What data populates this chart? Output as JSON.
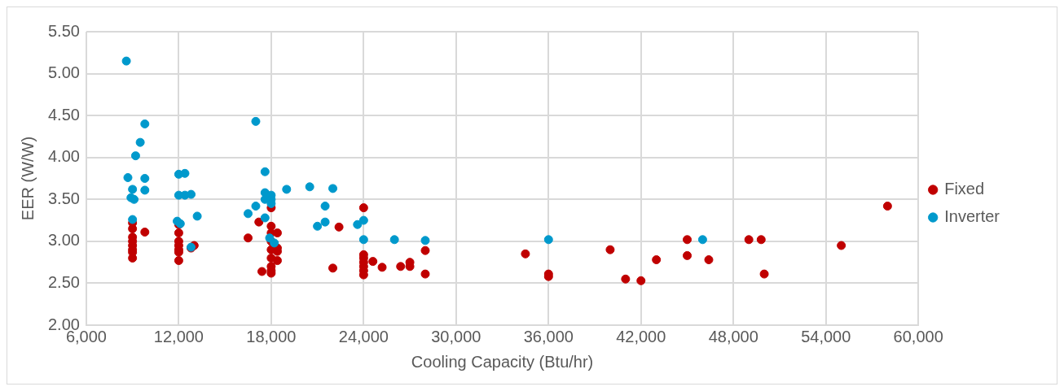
{
  "chart_data": {
    "type": "scatter",
    "xlabel": "Cooling Capacity (Btu/hr)",
    "ylabel": "EER (W/W)",
    "xlim": [
      6000,
      60000
    ],
    "xticks": [
      {
        "value": 6000,
        "label": "6,000"
      },
      {
        "value": 12000,
        "label": "12,000"
      },
      {
        "value": 18000,
        "label": "18,000"
      },
      {
        "value": 24000,
        "label": "24,000"
      },
      {
        "value": 30000,
        "label": "30,000"
      },
      {
        "value": 36000,
        "label": "36,000"
      },
      {
        "value": 42000,
        "label": "42,000"
      },
      {
        "value": 48000,
        "label": "48,000"
      },
      {
        "value": 54000,
        "label": "54,000"
      },
      {
        "value": 60000,
        "label": "60,000"
      }
    ],
    "ylim": [
      2,
      5.5
    ],
    "yticks": [
      {
        "value": 2,
        "label": "2.00"
      },
      {
        "value": 2.5,
        "label": "2.50"
      },
      {
        "value": 3,
        "label": "3.00"
      },
      {
        "value": 3.5,
        "label": "3.50"
      },
      {
        "value": 4,
        "label": "4.00"
      },
      {
        "value": 4.5,
        "label": "4.50"
      },
      {
        "value": 5,
        "label": "5.00"
      },
      {
        "value": 5.5,
        "label": "5.50"
      }
    ],
    "grid": true,
    "legend": "right",
    "marker": "circle",
    "series": [
      {
        "name": "Fixed",
        "color": "#c00000",
        "x": [
          9000,
          9000,
          9000,
          9000,
          9000,
          9000,
          9000,
          9000,
          9800,
          12000,
          12000,
          12000,
          12000,
          12000,
          12000,
          12000,
          12800,
          13000,
          16500,
          17200,
          17400,
          18000,
          18000,
          18000,
          18000,
          18000,
          18000,
          18000,
          18000,
          18000,
          18400,
          18400,
          18400,
          18400,
          22000,
          22400,
          24000,
          24000,
          24000,
          24000,
          24000,
          24000,
          24000,
          24600,
          25200,
          26400,
          27000,
          27000,
          28000,
          28000,
          34500,
          36000,
          36000,
          40000,
          41000,
          42000,
          43000,
          45000,
          45000,
          46400,
          49000,
          49800,
          50000,
          55000,
          58000
        ],
        "values": [
          3.22,
          3.15,
          3.05,
          3.0,
          2.95,
          2.9,
          2.87,
          2.8,
          3.11,
          3.2,
          3.1,
          3.0,
          2.95,
          2.9,
          2.87,
          2.77,
          2.92,
          2.95,
          3.04,
          3.23,
          2.64,
          3.4,
          3.18,
          3.1,
          3.0,
          2.9,
          2.8,
          2.7,
          2.65,
          2.62,
          3.1,
          2.92,
          2.88,
          2.77,
          2.68,
          3.17,
          3.4,
          2.84,
          2.8,
          2.75,
          2.7,
          2.65,
          2.6,
          2.76,
          2.69,
          2.7,
          2.75,
          2.7,
          2.89,
          2.61,
          2.85,
          2.61,
          2.58,
          2.9,
          2.55,
          2.53,
          2.78,
          3.02,
          2.83,
          2.78,
          3.02,
          3.02,
          2.61,
          2.95,
          3.42
        ]
      },
      {
        "name": "Inverter",
        "color": "#0099cc",
        "x": [
          8600,
          8700,
          9000,
          8900,
          9100,
          9000,
          9200,
          9500,
          9800,
          9800,
          9800,
          12000,
          12000,
          11900,
          12100,
          12400,
          12400,
          12800,
          12800,
          13200,
          16500,
          17000,
          17000,
          17600,
          17600,
          17600,
          17600,
          18000,
          18000,
          18000,
          17900,
          18200,
          19000,
          20500,
          21000,
          21500,
          21500,
          22000,
          23600,
          24000,
          24000,
          26000,
          28000,
          36000,
          46000
        ],
        "values": [
          5.15,
          3.76,
          3.62,
          3.52,
          3.5,
          3.26,
          4.02,
          4.18,
          4.4,
          3.75,
          3.61,
          3.8,
          3.55,
          3.24,
          3.21,
          3.81,
          3.55,
          3.56,
          2.93,
          3.3,
          3.33,
          3.42,
          4.43,
          3.83,
          3.58,
          3.5,
          3.28,
          3.55,
          3.5,
          3.45,
          3.04,
          2.98,
          3.62,
          3.65,
          3.18,
          3.42,
          3.23,
          3.63,
          3.2,
          3.25,
          3.02,
          3.02,
          3.01,
          3.02,
          3.02
        ]
      }
    ]
  }
}
